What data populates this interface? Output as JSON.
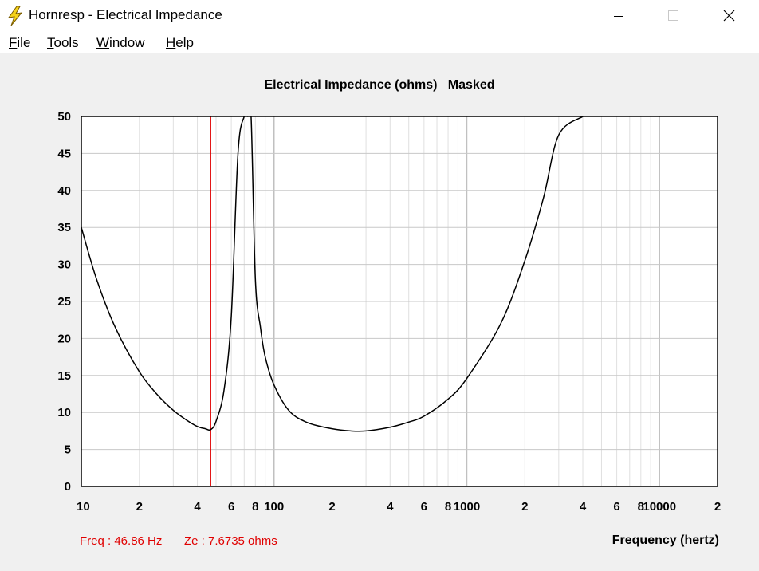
{
  "window": {
    "title": "Hornresp - Electrical Impedance",
    "icon": "lightning-bolt-icon",
    "controls": [
      "minimize-icon",
      "maximize-icon",
      "close-icon"
    ]
  },
  "menu": {
    "items": [
      {
        "accel": "F",
        "rest": "ile"
      },
      {
        "accel": "T",
        "rest": "ools"
      },
      {
        "accel": "W",
        "rest": "indow"
      },
      {
        "accel": "H",
        "rest": "elp"
      }
    ]
  },
  "chart_data": {
    "type": "line",
    "title": "Electrical Impedance (ohms)   Masked",
    "xlabel": "Frequency (hertz)",
    "ylabel": "",
    "x_scale": "log",
    "xlim": [
      10,
      20000
    ],
    "ylim": [
      0,
      50
    ],
    "y_ticks": [
      "0",
      "5",
      "10",
      "15",
      "20",
      "25",
      "30",
      "35",
      "40",
      "45",
      "50"
    ],
    "x_tick_labels": [
      {
        "x": 10,
        "label": "10"
      },
      {
        "x": 20,
        "label": "2"
      },
      {
        "x": 40,
        "label": "4"
      },
      {
        "x": 60,
        "label": "6"
      },
      {
        "x": 80,
        "label": "8"
      },
      {
        "x": 100,
        "label": "100"
      },
      {
        "x": 200,
        "label": "2"
      },
      {
        "x": 400,
        "label": "4"
      },
      {
        "x": 600,
        "label": "6"
      },
      {
        "x": 800,
        "label": "8"
      },
      {
        "x": 1000,
        "label": "1000"
      },
      {
        "x": 2000,
        "label": "2"
      },
      {
        "x": 4000,
        "label": "4"
      },
      {
        "x": 6000,
        "label": "6"
      },
      {
        "x": 8000,
        "label": "8"
      },
      {
        "x": 10000,
        "label": "10000"
      },
      {
        "x": 20000,
        "label": "2"
      }
    ],
    "grid": true,
    "series": [
      {
        "color": "#000000",
        "x": [
          10,
          12,
          15,
          20,
          25,
          30,
          35,
          40,
          44,
          46.86,
          50,
          55,
          60,
          65,
          70,
          73,
          76,
          80,
          85,
          90,
          100,
          120,
          150,
          200,
          250,
          300,
          400,
          500,
          600,
          800,
          1000,
          1500,
          2000,
          2500,
          3000,
          4000
        ],
        "y": [
          35,
          28,
          21.5,
          15.5,
          12.3,
          10.3,
          9.0,
          8.1,
          7.8,
          7.67,
          8.8,
          13,
          23,
          45,
          50,
          50,
          50,
          28,
          21.5,
          17.5,
          13.7,
          10.2,
          8.6,
          7.8,
          7.5,
          7.5,
          8.0,
          8.7,
          9.5,
          11.8,
          14.6,
          22,
          30.5,
          39,
          47.5,
          50
        ]
      }
    ],
    "cursor": {
      "x": 46.86,
      "color": "#e00000"
    }
  },
  "status": {
    "freq": "Freq : 46.86 Hz",
    "ze": "Ze : 7.6735 ohms"
  }
}
